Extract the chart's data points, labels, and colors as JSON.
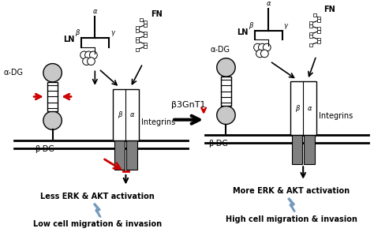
{
  "fig_width": 4.74,
  "fig_height": 2.94,
  "dpi": 100,
  "bg_color": "#ffffff",
  "black": "#000000",
  "red": "#cc0000",
  "lgray": "#c8c8c8",
  "dgray": "#808080",
  "arrow_label": "β3GnT1",
  "left_bottom1": "Less ERK & AKT activation",
  "left_bottom2": "Low cell migration & invasion",
  "right_bottom1": "More ERK & AKT activation",
  "right_bottom2": "High cell migration & invasion",
  "lbl_aDG": "α-DG",
  "lbl_bDG": "β-DG",
  "lbl_integrins": "Integrins",
  "lbl_LN": "LN",
  "lbl_FN": "FN",
  "lbl_alpha": "α",
  "lbl_beta": "β",
  "lbl_gamma": "γ",
  "lbl_beta_int": "β",
  "lbl_alpha_int": "α"
}
